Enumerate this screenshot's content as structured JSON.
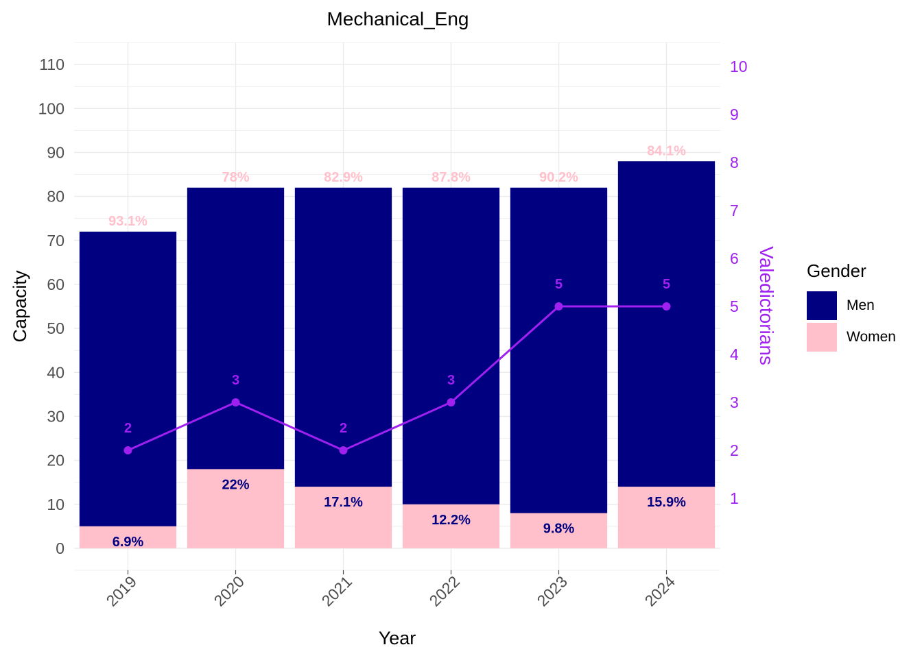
{
  "chart_data": {
    "type": "bar",
    "stacked": true,
    "title": "Mechanical_Eng",
    "xlabel": "Year",
    "ylabel": "Capacity",
    "y2label": "Valedictorians",
    "categories": [
      "2019",
      "2020",
      "2021",
      "2022",
      "2023",
      "2024"
    ],
    "ylim": [
      -5,
      115
    ],
    "yticks": [
      0,
      10,
      20,
      30,
      40,
      50,
      60,
      70,
      80,
      90,
      100,
      110
    ],
    "y2lim": [
      -0.5,
      10.5
    ],
    "y2ticks": [
      1,
      2,
      3,
      4,
      5,
      6,
      7,
      8,
      9,
      10
    ],
    "series": [
      {
        "name": "Women",
        "values": [
          5,
          18,
          14,
          10,
          8,
          14
        ],
        "labels": [
          "6.9%",
          "22%",
          "17.1%",
          "12.2%",
          "9.8%",
          "15.9%"
        ],
        "color": "#FFC0CB",
        "label_color": "#000080"
      },
      {
        "name": "Men",
        "values": [
          67,
          64,
          68,
          72,
          74,
          74
        ],
        "labels": [
          "93.1%",
          "78%",
          "82.9%",
          "87.8%",
          "90.2%",
          "84.1%"
        ],
        "color": "#000080",
        "label_color": "#FFC0CB"
      }
    ],
    "line": {
      "name": "Valedictorians",
      "values": [
        2,
        3,
        2,
        3,
        5,
        5
      ],
      "color": "#A020F0",
      "axis": "secondary"
    },
    "legend": {
      "title": "Gender",
      "position": "right",
      "items": [
        {
          "label": "Men",
          "color": "#000080"
        },
        {
          "label": "Women",
          "color": "#FFC0CB"
        }
      ]
    },
    "grid": true
  }
}
